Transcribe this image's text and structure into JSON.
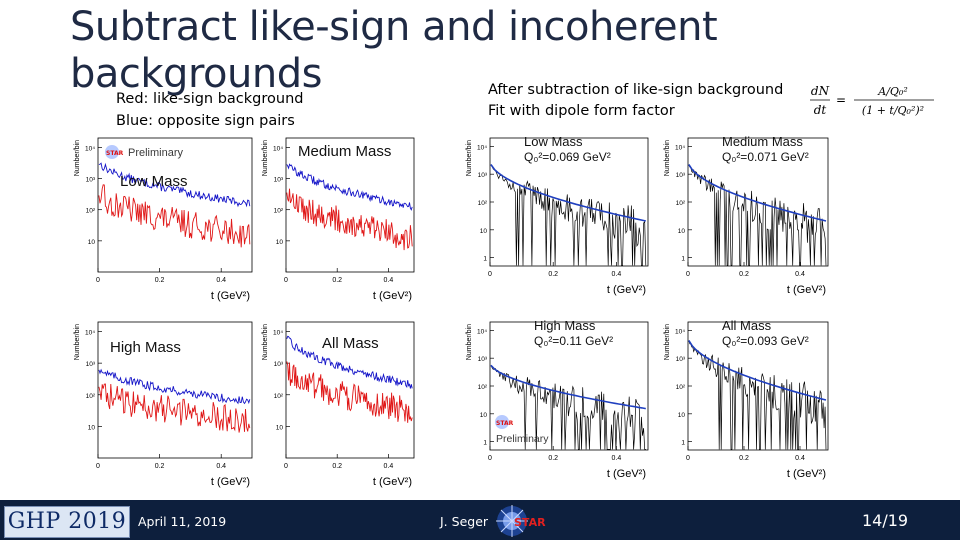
{
  "slide": {
    "title": "Subtract like-sign and incoherent backgrounds",
    "left_note_red": "Red: like-sign background",
    "left_note_blue": "Blue: opposite sign pairs",
    "right_note_1": "After subtraction of like-sign background",
    "right_note_2": "Fit with dipole form factor",
    "formula_lhs_num": "dN",
    "formula_lhs_den": "dt",
    "formula_rhs_num": "A/Q₀²",
    "formula_rhs_den": "(1 + t/Q₀²)²"
  },
  "footer": {
    "conference": "GHP 2019",
    "date": "April 11, 2019",
    "author": "J. Seger",
    "logo_text": "STAR",
    "page": "14/19"
  },
  "colors": {
    "opposite_sign": "#1414c8",
    "like_sign": "#e01818",
    "subtracted": "#000000",
    "fit": "#1f3fbf",
    "footer_bg": "#0d1f3d",
    "title": "#1f2a44"
  },
  "chart_data": [
    {
      "type": "line",
      "label": "Low Mass",
      "preliminary": "Preliminary",
      "xlabel": "t (GeV²)",
      "ylabel": "Number/bin",
      "xticks": [
        "0",
        "0.2",
        "0.4"
      ],
      "yticks": [
        "10",
        "10²",
        "10³",
        "10⁴"
      ],
      "log_y": true,
      "series": [
        {
          "name": "Blue: opposite sign pairs",
          "start": 4000,
          "end": 150,
          "color": "#1414c8"
        },
        {
          "name": "Red: like-sign background",
          "start": 400,
          "end": 15,
          "color": "#e01818"
        }
      ]
    },
    {
      "type": "line",
      "label": "Medium Mass",
      "xlabel": "t (GeV²)",
      "ylabel": "Number/bin",
      "xticks": [
        "0",
        "0.2",
        "0.4"
      ],
      "yticks": [
        "10",
        "10²",
        "10³",
        "10⁴"
      ],
      "log_y": true,
      "series": [
        {
          "name": "Blue: opposite sign pairs",
          "start": 4000,
          "end": 120,
          "color": "#1414c8"
        },
        {
          "name": "Red: like-sign background",
          "start": 400,
          "end": 12,
          "color": "#e01818"
        }
      ]
    },
    {
      "type": "line",
      "label": "High Mass",
      "xlabel": "t (GeV²)",
      "ylabel": "Number/bin",
      "xticks": [
        "0",
        "0.2",
        "0.4"
      ],
      "yticks": [
        "10",
        "10²",
        "10³",
        "10⁴"
      ],
      "log_y": true,
      "series": [
        {
          "name": "Blue: opposite sign pairs",
          "start": 800,
          "end": 60,
          "color": "#1414c8"
        },
        {
          "name": "Red: like-sign background",
          "start": 150,
          "end": 15,
          "color": "#e01818"
        }
      ]
    },
    {
      "type": "line",
      "label": "All Mass",
      "xlabel": "t (GeV²)",
      "ylabel": "Number/bin",
      "xticks": [
        "0",
        "0.2",
        "0.4"
      ],
      "yticks": [
        "10",
        "10²",
        "10³",
        "10⁴"
      ],
      "log_y": true,
      "series": [
        {
          "name": "Blue: opposite sign pairs",
          "start": 8000,
          "end": 200,
          "color": "#1414c8"
        },
        {
          "name": "Red: like-sign background",
          "start": 800,
          "end": 30,
          "color": "#e01818"
        }
      ]
    },
    {
      "type": "line",
      "label": "Low Mass",
      "q_label": "Q₀²=0.069 GeV²",
      "q0sq": 0.069,
      "xlabel": "t (GeV²)",
      "ylabel": "Number/bin",
      "xticks": [
        "0",
        "0.2",
        "0.4"
      ],
      "yticks": [
        "1",
        "10",
        "10²",
        "10³",
        "10⁴"
      ],
      "log_y": true,
      "series": [
        {
          "name": "subtracted",
          "start": 3000,
          "end": 20,
          "color": "#000000"
        },
        {
          "name": "dipole fit",
          "start": 3000,
          "end": 20,
          "color": "#1f3fbf"
        }
      ]
    },
    {
      "type": "line",
      "label": "Medium Mass",
      "q_label": "Q₀²=0.071 GeV²",
      "q0sq": 0.071,
      "xlabel": "t (GeV²)",
      "ylabel": "Number/bin",
      "xticks": [
        "0",
        "0.2",
        "0.4"
      ],
      "yticks": [
        "1",
        "10",
        "10²",
        "10³",
        "10⁴"
      ],
      "log_y": true,
      "series": [
        {
          "name": "subtracted",
          "start": 3000,
          "end": 20,
          "color": "#000000"
        },
        {
          "name": "dipole fit",
          "start": 3000,
          "end": 20,
          "color": "#1f3fbf"
        }
      ]
    },
    {
      "type": "line",
      "label": "High Mass",
      "q_label": "Q₀²=0.11 GeV²",
      "q0sq": 0.11,
      "preliminary": "Preliminary",
      "xlabel": "t (GeV²)",
      "ylabel": "Number/bin",
      "xticks": [
        "0",
        "0.2",
        "0.4"
      ],
      "yticks": [
        "1",
        "10",
        "10²",
        "10³",
        "10⁴"
      ],
      "log_y": true,
      "series": [
        {
          "name": "subtracted",
          "start": 700,
          "end": 15,
          "color": "#000000"
        },
        {
          "name": "dipole fit",
          "start": 700,
          "end": 15,
          "color": "#1f3fbf"
        }
      ]
    },
    {
      "type": "line",
      "label": "All Mass",
      "q_label": "Q₀²=0.093 GeV²",
      "q0sq": 0.093,
      "xlabel": "t (GeV²)",
      "ylabel": "Number/bin",
      "xticks": [
        "0",
        "0.2",
        "0.4"
      ],
      "yticks": [
        "1",
        "10",
        "10²",
        "10³",
        "10⁴"
      ],
      "log_y": true,
      "series": [
        {
          "name": "subtracted",
          "start": 6000,
          "end": 30,
          "color": "#000000"
        },
        {
          "name": "dipole fit",
          "start": 6000,
          "end": 30,
          "color": "#1f3fbf"
        }
      ]
    }
  ]
}
